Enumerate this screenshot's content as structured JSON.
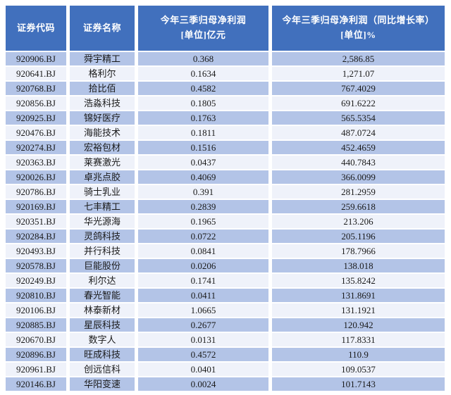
{
  "colors": {
    "header_bg": "#4170bd",
    "header_text": "#ffffff",
    "row_odd_bg": "#b3c4e7",
    "row_even_bg": "#eff2fa",
    "body_text": "#1a1a1a",
    "page_bg": "#ffffff"
  },
  "chart_data": {
    "type": "table",
    "title": "",
    "legend_position": "none",
    "columns": [
      {
        "id": "code",
        "lines": [
          "证券代码"
        ]
      },
      {
        "id": "name",
        "lines": [
          "证券名称"
        ]
      },
      {
        "id": "profit",
        "lines": [
          "今年三季归母净利润",
          "[单位]亿元"
        ]
      },
      {
        "id": "growth",
        "lines": [
          "今年三季归母净利润（同比增长率）",
          "[单位]%"
        ]
      }
    ],
    "rows": [
      [
        "920906.BJ",
        "舜宇精工",
        "0.368",
        "2,586.85"
      ],
      [
        "920641.BJ",
        "格利尔",
        "0.1634",
        "1,271.07"
      ],
      [
        "920768.BJ",
        "拾比佰",
        "0.4582",
        "767.4029"
      ],
      [
        "920856.BJ",
        "浩淼科技",
        "0.1805",
        "691.6222"
      ],
      [
        "920925.BJ",
        "锦好医疗",
        "0.1763",
        "565.5354"
      ],
      [
        "920476.BJ",
        "海能技术",
        "0.1811",
        "487.0724"
      ],
      [
        "920274.BJ",
        "宏裕包材",
        "0.1516",
        "452.4659"
      ],
      [
        "920363.BJ",
        "莱赛激光",
        "0.0437",
        "440.7843"
      ],
      [
        "920026.BJ",
        "卓兆点胶",
        "0.4069",
        "366.0099"
      ],
      [
        "920786.BJ",
        "骑士乳业",
        "0.391",
        "281.2959"
      ],
      [
        "920169.BJ",
        "七丰精工",
        "0.2839",
        "259.6618"
      ],
      [
        "920351.BJ",
        "华光源海",
        "0.1965",
        "213.206"
      ],
      [
        "920284.BJ",
        "灵鸽科技",
        "0.0722",
        "205.1196"
      ],
      [
        "920493.BJ",
        "并行科技",
        "0.0841",
        "178.7966"
      ],
      [
        "920578.BJ",
        "巨能股份",
        "0.0206",
        "138.018"
      ],
      [
        "920249.BJ",
        "利尔达",
        "0.1741",
        "135.8242"
      ],
      [
        "920810.BJ",
        "春光智能",
        "0.0411",
        "131.8691"
      ],
      [
        "920106.BJ",
        "林泰新材",
        "1.0665",
        "131.1921"
      ],
      [
        "920885.BJ",
        "星辰科技",
        "0.2677",
        "120.942"
      ],
      [
        "920670.BJ",
        "数字人",
        "0.0131",
        "117.8331"
      ],
      [
        "920896.BJ",
        "旺成科技",
        "0.4572",
        "110.9"
      ],
      [
        "920961.BJ",
        "创远信科",
        "0.0401",
        "109.0537"
      ],
      [
        "920146.BJ",
        "华阳变速",
        "0.0024",
        "101.7143"
      ]
    ]
  }
}
